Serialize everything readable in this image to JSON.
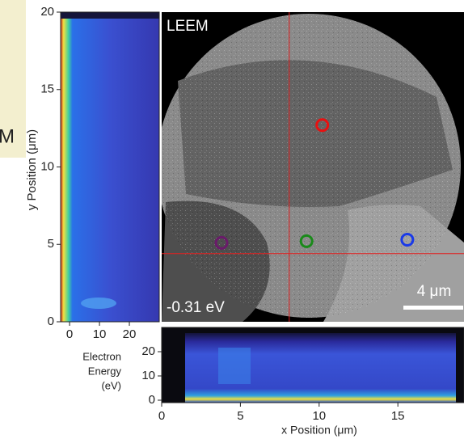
{
  "side_text": "M",
  "image": {
    "title": "LEEM",
    "energy": "-0.31 eV",
    "scale_bar": "4 μm",
    "xlim": [
      0,
      19.2
    ],
    "ylim": [
      0,
      20
    ],
    "crosshair": {
      "x": 8.1,
      "y": 4.4,
      "color": "#e02020"
    },
    "markers": [
      {
        "color": "#e81010",
        "x": 10.2,
        "y": 12.7
      },
      {
        "color": "#6a1a6a",
        "x": 3.8,
        "y": 5.1
      },
      {
        "color": "#1a8a1a",
        "x": 9.2,
        "y": 5.2
      },
      {
        "color": "#1a3ae8",
        "x": 15.6,
        "y": 5.3
      }
    ]
  },
  "chart_data": [
    {
      "type": "heatmap",
      "xlabel": [
        "Electron",
        "Energy",
        "(eV)"
      ],
      "ylabel": "y Position (μm)",
      "xlim": [
        -3,
        30
      ],
      "ylim": [
        0,
        20
      ],
      "xticks": [
        0,
        10,
        20
      ],
      "yticks": [
        0,
        5,
        10,
        15,
        20
      ]
    },
    {
      "type": "heatmap",
      "xlabel": "x Position (μm)",
      "xlim": [
        0,
        19.2
      ],
      "ylim": [
        -1,
        30
      ],
      "xticks": [
        0,
        5,
        10,
        15
      ],
      "yticks": [
        0,
        10,
        20
      ]
    }
  ]
}
